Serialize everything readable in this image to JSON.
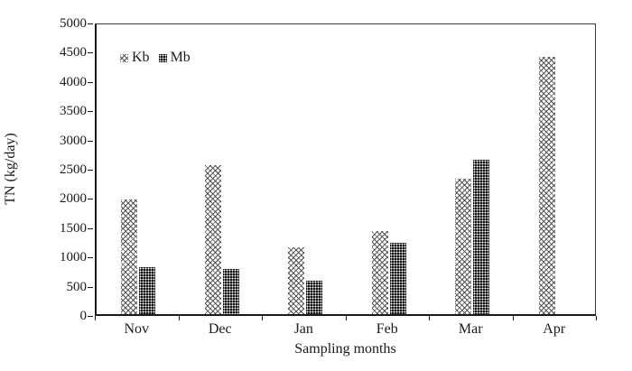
{
  "chart_data": {
    "type": "bar",
    "title": "",
    "xlabel": "Sampling months",
    "ylabel": "TN (kg/day)",
    "categories": [
      "Nov",
      "Dec",
      "Jan",
      "Feb",
      "Mar",
      "Apr"
    ],
    "series": [
      {
        "name": "Kb",
        "pattern": "light-diagonal-hatch",
        "values": [
          1970,
          2570,
          1150,
          1430,
          2330,
          4420
        ]
      },
      {
        "name": "Mb",
        "pattern": "dark-dotted",
        "values": [
          800,
          770,
          580,
          1220,
          2650,
          0
        ]
      }
    ],
    "ylim": [
      0,
      5000
    ],
    "yticks": [
      0,
      500,
      1000,
      1500,
      2000,
      2500,
      3000,
      3500,
      4000,
      4500,
      5000
    ],
    "grid": "off",
    "legend_position": "inside-top-left",
    "colors": {
      "text": "#1a1a1a",
      "axis": "#1a1a1a",
      "kb_hatch": "#464646",
      "mb_fill": "#151515",
      "background": "#ffffff"
    }
  }
}
